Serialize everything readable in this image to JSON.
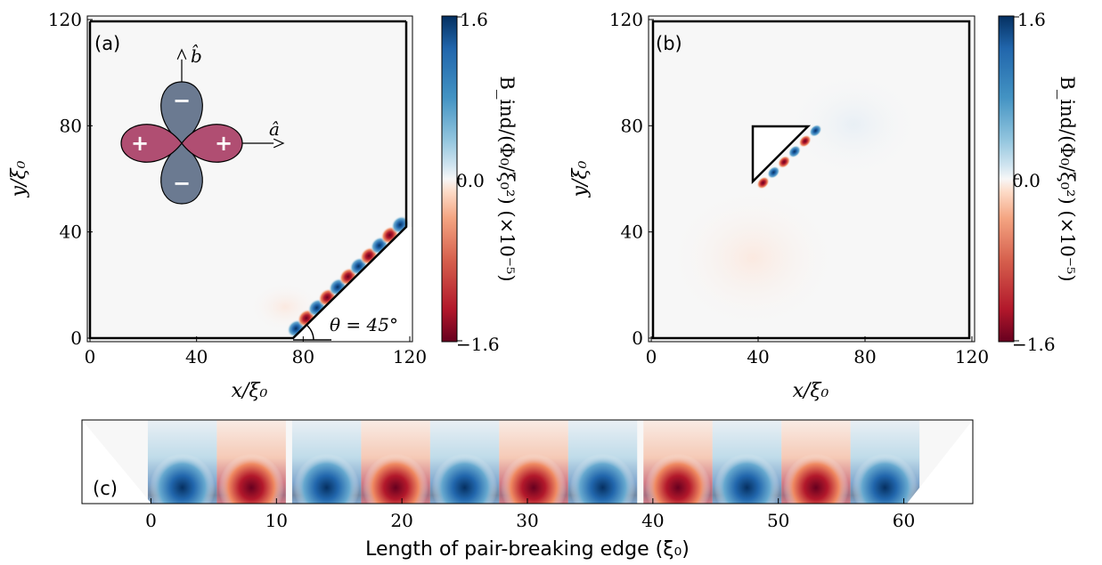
{
  "panels": {
    "a": {
      "tag": "(a)",
      "theta_label": "θ = 45°",
      "b_axis": "b̂",
      "a_axis": "â",
      "lobe_signs": [
        "−",
        "+",
        "+",
        "−"
      ]
    },
    "b": {
      "tag": "(b)"
    },
    "c": {
      "tag": "(c)"
    }
  },
  "colorbar": {
    "label": "B_ind/(Φ₀/ξ₀²) (×10⁻⁵)",
    "ticks": [
      "1.6",
      "0.0",
      "−1.6"
    ],
    "vmin": -1.6,
    "vmax": 1.6,
    "colors": {
      "neg": "#67001f",
      "mid": "#f7f7f7",
      "pos": "#053061"
    }
  },
  "chart_data": [
    {
      "type": "heatmap",
      "panel": "(a)",
      "xlabel": "x/ξ₀",
      "ylabel": "y/ξ₀",
      "xlim": [
        0,
        120
      ],
      "ylim": [
        0,
        120
      ],
      "xticks": [
        "0",
        "40",
        "80",
        "120"
      ],
      "yticks": [
        "0",
        "40",
        "80",
        "120"
      ],
      "edge": {
        "from": [
          77,
          0
        ],
        "to": [
          120,
          43
        ],
        "theta_deg": 45
      },
      "grid": false
    },
    {
      "type": "heatmap",
      "panel": "(b)",
      "xlabel": "x/ξ₀",
      "ylabel": "y/ξ₀",
      "xlim": [
        0,
        120
      ],
      "ylim": [
        0,
        120
      ],
      "xticks": [
        "0",
        "40",
        "80",
        "120"
      ],
      "yticks": [
        "0",
        "40",
        "80",
        "120"
      ],
      "triangle_hole": [
        [
          39,
          59
        ],
        [
          39,
          81
        ],
        [
          61,
          81
        ]
      ],
      "grid": false
    },
    {
      "type": "heatmap",
      "panel": "(c)",
      "xlabel": "Length of pair-breaking edge (ξ₀)",
      "xlim": [
        -5.5,
        65.5
      ],
      "xticks": [
        "0",
        "10",
        "20",
        "30",
        "40",
        "50",
        "60"
      ],
      "blob_centers": [
        2.5,
        8,
        14,
        19.5,
        25,
        30.5,
        36,
        42,
        47.5,
        53,
        58.5
      ],
      "blob_signs": [
        1,
        -1,
        1,
        -1,
        1,
        -1,
        1,
        -1,
        1,
        -1,
        1
      ],
      "grid": false
    }
  ]
}
